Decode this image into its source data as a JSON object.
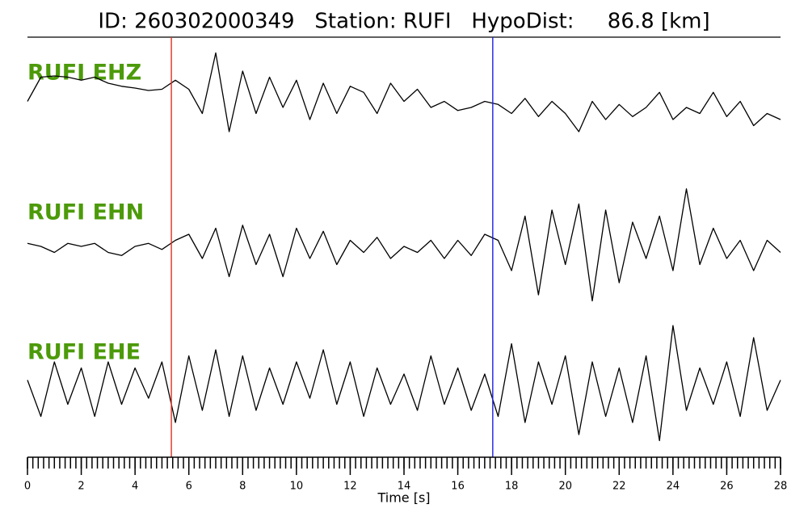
{
  "chart_data": {
    "type": "line",
    "title": "ID: 260302000349   Station: RUFI   HypoDist:     86.8 [km]",
    "xlabel": "Time [s]",
    "xlim": [
      0,
      28
    ],
    "xticks": [
      0,
      2,
      4,
      6,
      8,
      10,
      12,
      14,
      16,
      18,
      20,
      22,
      24,
      26,
      28
    ],
    "xminor": 0.2,
    "ylim": [
      -1,
      1
    ],
    "markers": [
      {
        "x": 5.35,
        "color": "#e0301e"
      },
      {
        "x": 17.3,
        "color": "#1f1fe0"
      }
    ],
    "x": [
      0,
      0.5,
      1,
      1.5,
      2,
      2.5,
      3,
      3.5,
      4,
      4.5,
      5,
      5.5,
      6,
      6.5,
      7,
      7.5,
      8,
      8.5,
      9,
      9.5,
      10,
      10.5,
      11,
      11.5,
      12,
      12.5,
      13,
      13.5,
      14,
      14.5,
      15,
      15.5,
      16,
      16.5,
      17,
      17.5,
      18,
      18.5,
      19,
      19.5,
      20,
      20.5,
      21,
      21.5,
      22,
      22.5,
      23,
      23.5,
      24,
      24.5,
      25,
      25.5,
      26,
      26.5,
      27,
      27.5,
      28
    ],
    "series": [
      {
        "name": "RUFI EHZ",
        "color": "#000000",
        "values": [
          -0.1,
          0.3,
          0.32,
          0.3,
          0.25,
          0.3,
          0.2,
          0.15,
          0.12,
          0.08,
          0.1,
          0.25,
          0.1,
          -0.3,
          0.7,
          -0.6,
          0.4,
          -0.3,
          0.3,
          -0.2,
          0.25,
          -0.4,
          0.2,
          -0.3,
          0.15,
          0.05,
          -0.3,
          0.2,
          -0.1,
          0.1,
          -0.2,
          -0.1,
          -0.25,
          -0.2,
          -0.1,
          -0.15,
          -0.3,
          -0.05,
          -0.35,
          -0.1,
          -0.3,
          -0.6,
          -0.1,
          -0.4,
          -0.15,
          -0.35,
          -0.2,
          0.05,
          -0.4,
          -0.2,
          -0.3,
          0.05,
          -0.35,
          -0.1,
          -0.5,
          -0.3,
          -0.4
        ]
      },
      {
        "name": "RUFI EHN",
        "color": "#000000",
        "values": [
          0.05,
          0,
          -0.1,
          0.05,
          0,
          0.05,
          -0.1,
          -0.15,
          0,
          0.05,
          -0.05,
          0.1,
          0.2,
          -0.2,
          0.3,
          -0.5,
          0.35,
          -0.3,
          0.2,
          -0.5,
          0.3,
          -0.2,
          0.25,
          -0.3,
          0.1,
          -0.1,
          0.15,
          -0.2,
          0,
          -0.1,
          0.1,
          -0.2,
          0.1,
          -0.15,
          0.2,
          0.1,
          -0.4,
          0.5,
          -0.8,
          0.6,
          -0.3,
          0.7,
          -0.9,
          0.6,
          -0.6,
          0.4,
          -0.2,
          0.5,
          -0.4,
          0.95,
          -0.3,
          0.3,
          -0.2,
          0.1,
          -0.4,
          0.1,
          -0.1
        ]
      },
      {
        "name": "RUFI EHE",
        "color": "#000000",
        "values": [
          0.1,
          -0.5,
          0.4,
          -0.3,
          0.3,
          -0.5,
          0.4,
          -0.3,
          0.3,
          -0.2,
          0.4,
          -0.6,
          0.5,
          -0.4,
          0.6,
          -0.5,
          0.5,
          -0.4,
          0.3,
          -0.3,
          0.4,
          -0.2,
          0.6,
          -0.3,
          0.4,
          -0.5,
          0.3,
          -0.3,
          0.2,
          -0.4,
          0.5,
          -0.3,
          0.3,
          -0.4,
          0.2,
          -0.5,
          0.7,
          -0.6,
          0.4,
          -0.3,
          0.5,
          -0.8,
          0.4,
          -0.5,
          0.3,
          -0.6,
          0.5,
          -0.9,
          1,
          -0.4,
          0.3,
          -0.3,
          0.4,
          -0.5,
          0.8,
          -0.4,
          0.1
        ]
      }
    ]
  }
}
